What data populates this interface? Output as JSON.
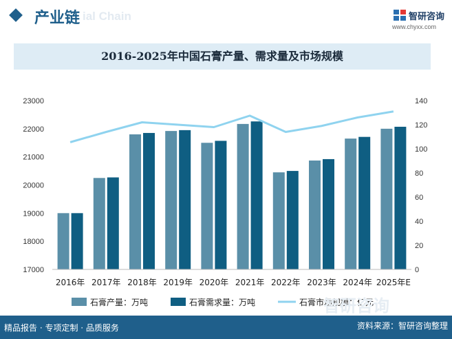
{
  "header": {
    "section_title": "产业链",
    "watermark_text": "ial Chain",
    "brand_name": "智研咨询",
    "brand_url": "www.chyxx.com"
  },
  "chart_data": {
    "type": "bar",
    "title": "2016-2025年中国石膏产量、需求量及市场规模",
    "categories": [
      "2016年",
      "2017年",
      "2018年",
      "2019年",
      "2020年",
      "2021年",
      "2022年",
      "2023年",
      "2024年",
      "2025年E"
    ],
    "series": [
      {
        "name": "石膏产量：万吨",
        "type": "bar",
        "axis": "left",
        "color": "#5a8fa8",
        "values": [
          19000,
          20250,
          21800,
          21920,
          21500,
          22170,
          20450,
          20870,
          21650,
          22000
        ]
      },
      {
        "name": "石膏需求量：万吨",
        "type": "bar",
        "axis": "left",
        "color": "#0f5e82",
        "values": [
          19000,
          20270,
          21850,
          21950,
          21570,
          22260,
          20500,
          20920,
          21710,
          22070
        ]
      },
      {
        "name": "石膏市场规模：亿元",
        "type": "line",
        "axis": "right",
        "color": "#8fd3ef",
        "values": [
          105.5,
          114,
          122,
          120,
          118,
          127.5,
          114,
          119,
          126,
          131
        ]
      }
    ],
    "y_left": {
      "min": 17000,
      "max": 23000,
      "ticks": [
        17000,
        18000,
        19000,
        20000,
        21000,
        22000,
        23000
      ]
    },
    "y_right": {
      "min": 0,
      "max": 140,
      "ticks": [
        0,
        20,
        40,
        60,
        80,
        100,
        120,
        140
      ]
    },
    "legend_position": "bottom",
    "grid": false
  },
  "footer": {
    "left_text": "精品报告 · 专项定制 · 品质服务",
    "source_text": "资料来源：智研咨询整理",
    "watermark": "智研咨询"
  },
  "colors": {
    "brand": "#1f5f8b",
    "title_band": "#deecf5"
  }
}
